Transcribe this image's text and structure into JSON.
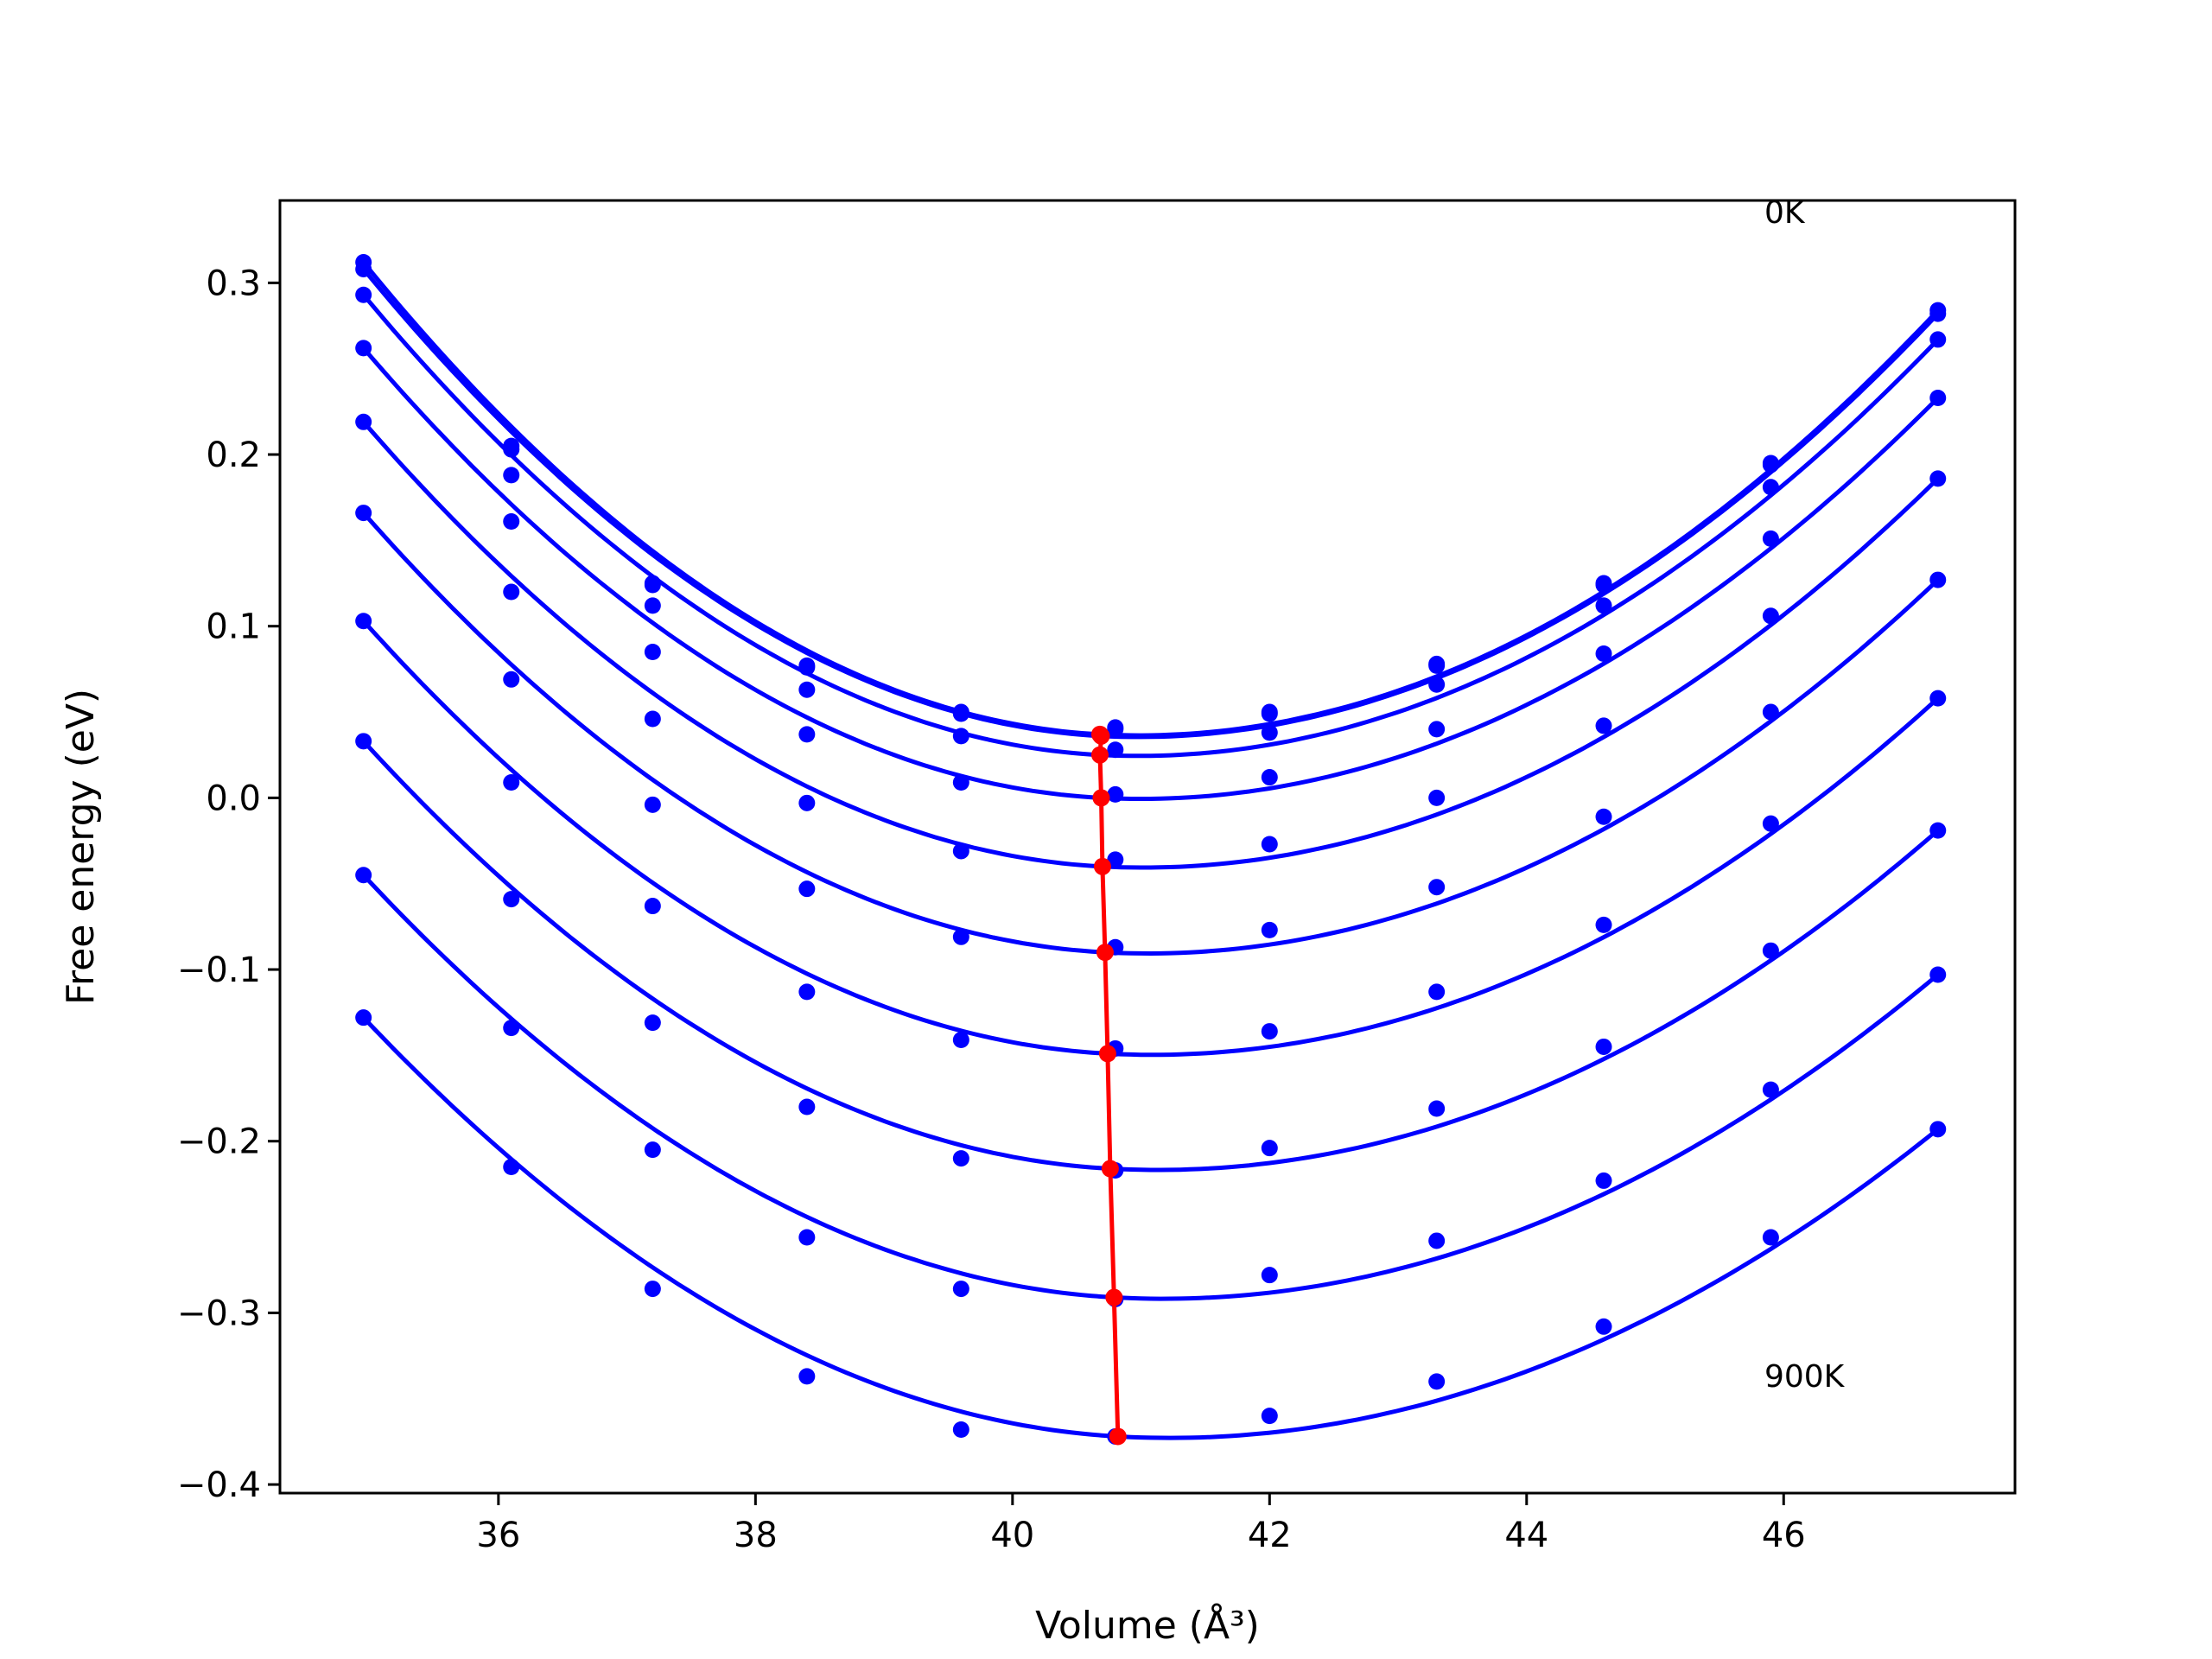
{
  "chart_data": {
    "type": "line",
    "xlabel": "Volume (Å³)",
    "ylabel": "Free energy (eV)",
    "xlim": [
      34.3,
      47.8
    ],
    "ylim": [
      -0.405,
      0.348
    ],
    "xticks": [
      36,
      38,
      40,
      42,
      44,
      46
    ],
    "yticks": [
      0.3,
      0.2,
      0.1,
      0.0,
      -0.1,
      -0.2,
      -0.3,
      -0.4
    ],
    "ytick_labels": [
      "0.3",
      "0.2",
      "0.1",
      "0.0",
      "−0.1",
      "−0.2",
      "−0.3",
      "−0.4"
    ],
    "grid": false,
    "legend": "none",
    "annotations": [
      {
        "text": "0K",
        "x": 45.85,
        "y": 0.335
      },
      {
        "text": "900K",
        "x": 45.85,
        "y": -0.343
      }
    ],
    "x": [
      34.95,
      36.1,
      37.2,
      38.4,
      39.6,
      40.8,
      42.0,
      43.3,
      44.6,
      45.9,
      47.2
    ],
    "series": [
      {
        "values": [
          0.312,
          0.205,
          0.125,
          0.077,
          0.05,
          0.041,
          0.05,
          0.078,
          0.125,
          0.195,
          0.284
        ],
        "min": [
          40.68,
          0.037
        ]
      },
      {
        "values": [
          0.308,
          0.203,
          0.124,
          0.076,
          0.049,
          0.04,
          0.049,
          0.077,
          0.124,
          0.194,
          0.282
        ],
        "min": [
          40.69,
          0.036
        ]
      },
      {
        "values": [
          0.293,
          0.188,
          0.112,
          0.063,
          0.036,
          0.028,
          0.038,
          0.066,
          0.112,
          0.181,
          0.267
        ],
        "min": [
          40.68,
          0.025
        ]
      },
      {
        "values": [
          0.262,
          0.161,
          0.085,
          0.037,
          0.009,
          0.002,
          0.012,
          0.04,
          0.084,
          0.151,
          0.233
        ],
        "min": [
          40.69,
          0.0
        ]
      },
      {
        "values": [
          0.219,
          0.12,
          0.046,
          -0.003,
          -0.031,
          -0.036,
          -0.027,
          0.0,
          0.042,
          0.106,
          0.186
        ],
        "min": [
          40.7,
          -0.04
        ]
      },
      {
        "values": [
          0.166,
          0.069,
          -0.004,
          -0.053,
          -0.081,
          -0.087,
          -0.077,
          -0.052,
          -0.011,
          0.05,
          0.127
        ],
        "min": [
          40.72,
          -0.09
        ]
      },
      {
        "values": [
          0.103,
          0.009,
          -0.063,
          -0.113,
          -0.141,
          -0.146,
          -0.136,
          -0.113,
          -0.074,
          -0.015,
          0.058
        ],
        "min": [
          40.74,
          -0.149
        ]
      },
      {
        "values": [
          0.033,
          -0.059,
          -0.131,
          -0.18,
          -0.21,
          -0.217,
          -0.204,
          -0.181,
          -0.145,
          -0.089,
          -0.019
        ],
        "min": [
          40.76,
          -0.216
        ]
      },
      {
        "values": [
          -0.045,
          -0.134,
          -0.205,
          -0.256,
          -0.286,
          -0.292,
          -0.278,
          -0.258,
          -0.223,
          -0.17,
          -0.103
        ],
        "min": [
          40.79,
          -0.291
        ]
      },
      {
        "values": [
          -0.128,
          -0.215,
          -0.286,
          -0.337,
          -0.368,
          -0.372,
          -0.36,
          -0.34,
          -0.308,
          -0.256,
          -0.193
        ],
        "min": [
          40.82,
          -0.372
        ]
      }
    ],
    "colors": {
      "series": "#0000ff",
      "min_line": "#ff0000"
    }
  }
}
